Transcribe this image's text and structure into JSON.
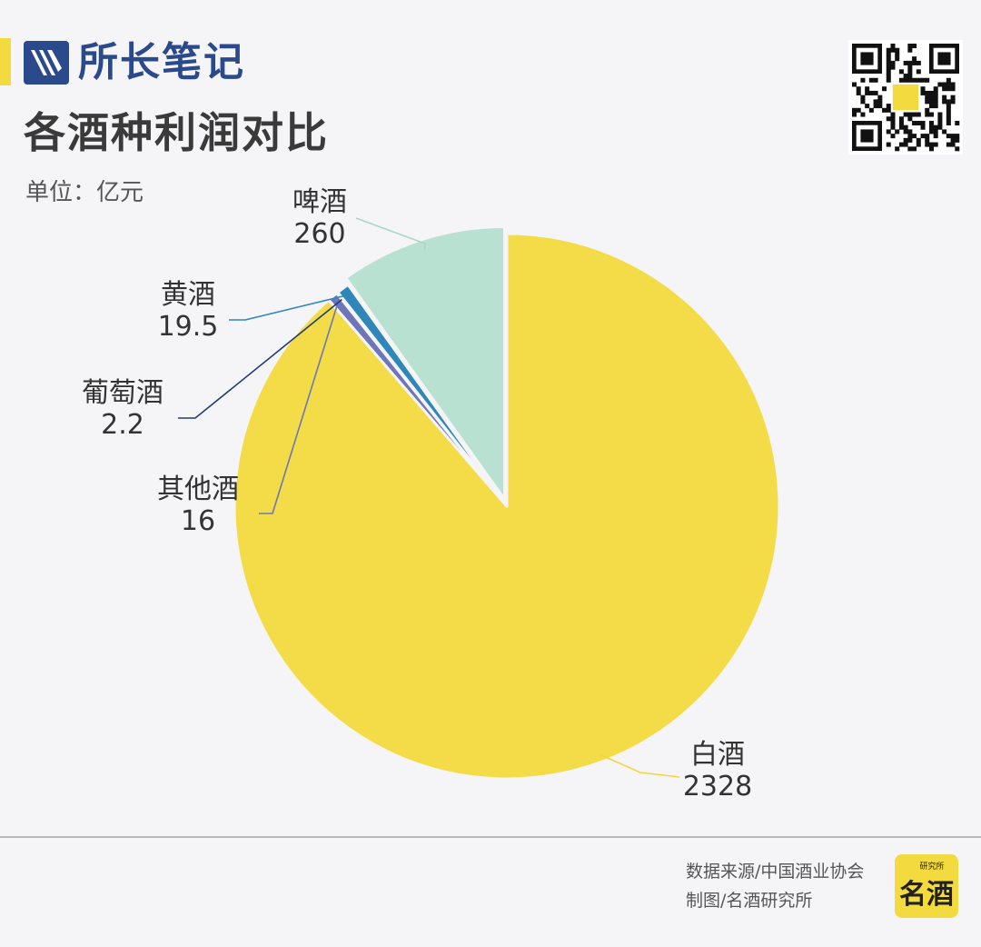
{
  "brand": {
    "name": "所长笔记",
    "color": "#2b4a8c",
    "accent": "#f3da3f"
  },
  "header": {
    "title": "各酒种利润对比",
    "unit": "单位：亿元"
  },
  "footer": {
    "source": "数据来源/中国酒业协会",
    "maker": "制图/名酒研究所",
    "logo_char": "名酒",
    "logo_small": "研究所"
  },
  "icons": {
    "qr": "qr-code-icon",
    "brand": "brand-logo-icon",
    "footer": "mingjiu-logo-icon"
  },
  "chart_data": {
    "type": "pie",
    "start": "12 o'clock",
    "direction": "clockwise",
    "slices": [
      {
        "label": "白酒",
        "value": 2328,
        "value_text": "2328",
        "color": "#f4dc48"
      },
      {
        "label": "其他酒",
        "value": 16,
        "value_text": "16",
        "color": "#6f76b8"
      },
      {
        "label": "葡萄酒",
        "value": 2.2,
        "value_text": "2.2",
        "color": "#1f3d7a"
      },
      {
        "label": "黄酒",
        "value": 19.5,
        "value_text": "19.5",
        "color": "#2f86b8"
      },
      {
        "label": "啤酒",
        "value": 260,
        "value_text": "260",
        "color": "#b9e1d1"
      }
    ]
  }
}
